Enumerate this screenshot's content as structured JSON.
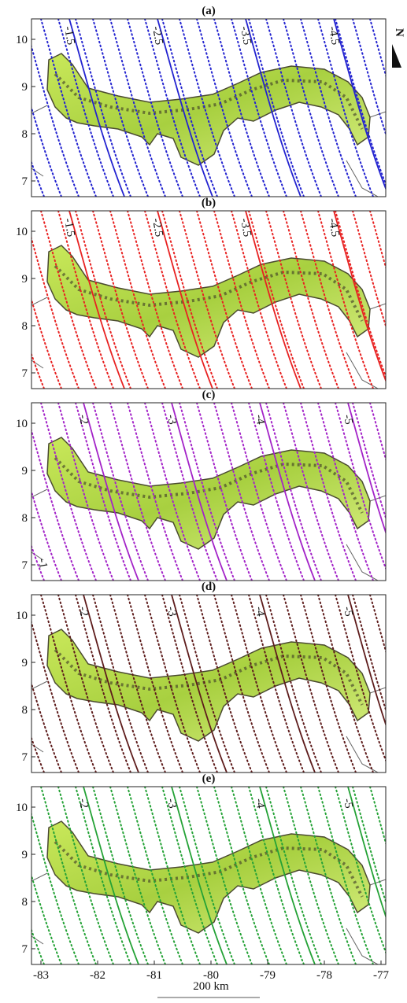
{
  "north": "N",
  "panels": [
    {
      "label": "(a)",
      "color": "#2323d0",
      "contour_labels": [
        "-1.5",
        "-2.5",
        "-3.5",
        "-4.5"
      ]
    },
    {
      "label": "(b)",
      "color": "#e82222",
      "contour_labels": [
        "-1.5",
        "-2.5",
        "-3.5",
        "-4.5"
      ]
    },
    {
      "label": "(c)",
      "color": "#a323c8",
      "contour_labels": [
        "-2",
        "-3",
        "-4",
        "-5"
      ],
      "corner_label": "-1"
    },
    {
      "label": "(d)",
      "color": "#5e1c1c",
      "contour_labels": [
        "-2",
        "-3",
        "-4",
        "-5"
      ]
    },
    {
      "label": "(e)",
      "color": "#24a236",
      "contour_labels": [
        "-2",
        "-3",
        "-4",
        "-5"
      ]
    }
  ],
  "y_ticks": [
    "10",
    "9",
    "8",
    "7"
  ],
  "x_ticks": [
    "-83",
    "-82",
    "-81",
    "-80",
    "-79",
    "-78",
    "-77"
  ],
  "scale": "200 km"
}
